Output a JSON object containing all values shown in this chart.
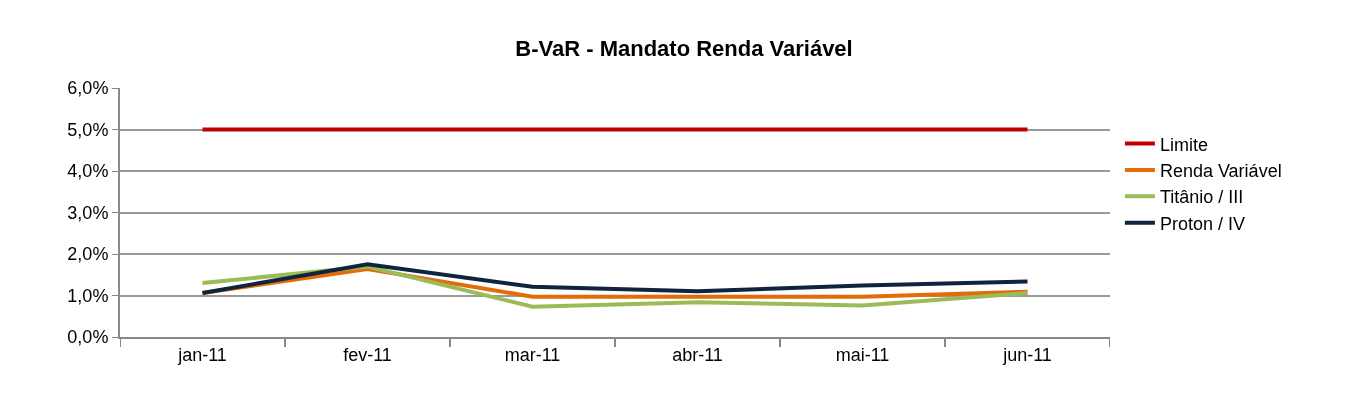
{
  "chart_data": {
    "type": "line",
    "title": "B-VaR - Mandato Renda Variável",
    "categories": [
      "jan-11",
      "fev-11",
      "mar-11",
      "abr-11",
      "mai-11",
      "jun-11"
    ],
    "series": [
      {
        "name": "Limite",
        "color": "#c00000",
        "values": [
          5,
          5,
          5,
          5,
          5,
          5
        ]
      },
      {
        "name": "Renda Variável",
        "color": "#e36c09",
        "values": [
          1.06,
          1.64,
          0.97,
          0.97,
          0.97,
          1.09
        ]
      },
      {
        "name": "Titânio / III",
        "color": "#9bbb59",
        "values": [
          1.3,
          1.7,
          0.73,
          0.84,
          0.76,
          1.06
        ]
      },
      {
        "name": "Proton / IV",
        "color": "#0f243e",
        "values": [
          1.06,
          1.75,
          1.21,
          1.1,
          1.24,
          1.34
        ]
      }
    ],
    "ylim": [
      0,
      6
    ],
    "yticks": [
      {
        "value": 0,
        "label": "0,0%"
      },
      {
        "value": 1,
        "label": "1,0%"
      },
      {
        "value": 2,
        "label": "2,0%"
      },
      {
        "value": 3,
        "label": "3,0%"
      },
      {
        "value": 4,
        "label": "4,0%"
      },
      {
        "value": 5,
        "label": "5,0%"
      },
      {
        "value": 6,
        "label": "6,0%"
      }
    ],
    "grid": "y",
    "legend": "right",
    "marker": "none",
    "line_style": "solid"
  }
}
